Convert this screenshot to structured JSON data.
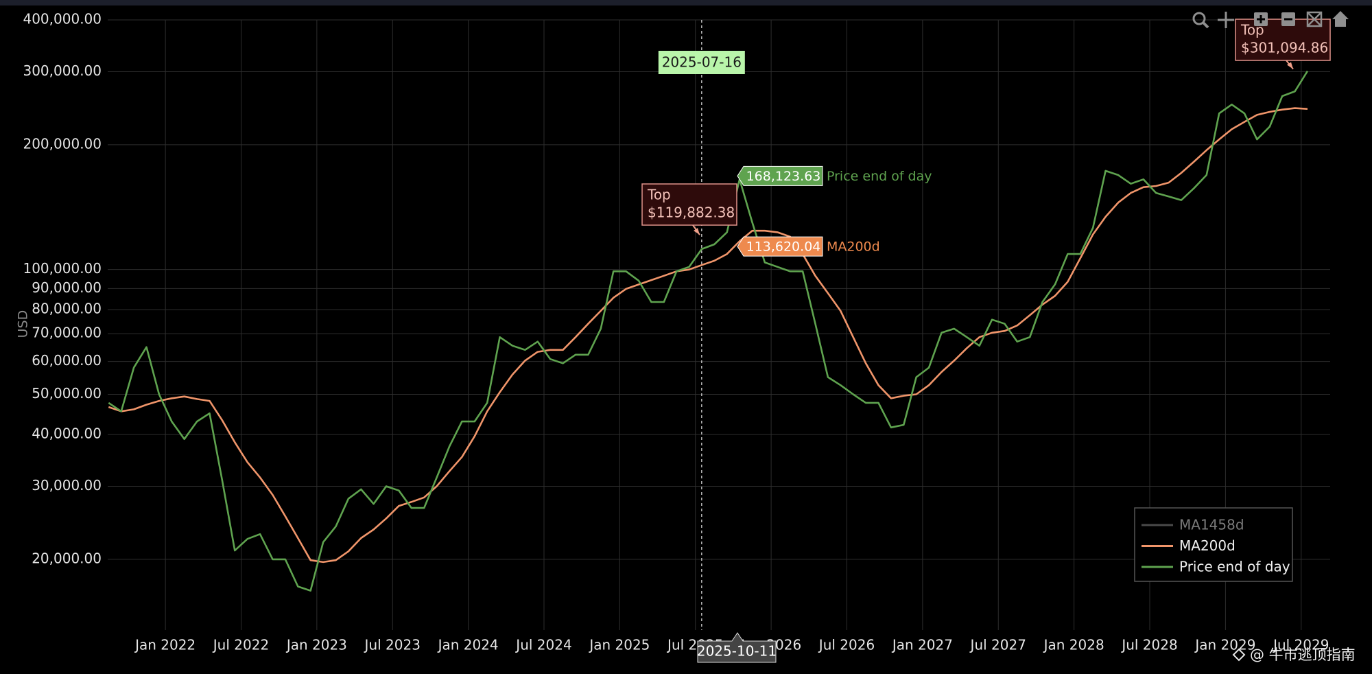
{
  "chart_data": {
    "type": "line",
    "y_label": "USD",
    "log_y": true,
    "grid": true,
    "legend": "bottom-right",
    "x": [
      "2021-08",
      "2021-09",
      "2021-10",
      "2021-11",
      "2021-12",
      "2022-01",
      "2022-02",
      "2022-03",
      "2022-04",
      "2022-05",
      "2022-06",
      "2022-07",
      "2022-08",
      "2022-09",
      "2022-10",
      "2022-11",
      "2022-12",
      "2023-01",
      "2023-02",
      "2023-03",
      "2023-04",
      "2023-05",
      "2023-06",
      "2023-07",
      "2023-08",
      "2023-09",
      "2023-10",
      "2023-11",
      "2023-12",
      "2024-01",
      "2024-02",
      "2024-03",
      "2024-04",
      "2024-05",
      "2024-06",
      "2024-07",
      "2024-08",
      "2024-09",
      "2024-10",
      "2024-11",
      "2024-12",
      "2025-01",
      "2025-02",
      "2025-03",
      "2025-04",
      "2025-05",
      "2025-06",
      "2025-07",
      "2025-08",
      "2025-09",
      "2025-10",
      "2025-11",
      "2025-12",
      "2026-01",
      "2026-02",
      "2026-03",
      "2026-04",
      "2026-05",
      "2026-06",
      "2026-07",
      "2026-08",
      "2026-09",
      "2026-10",
      "2026-11",
      "2026-12",
      "2027-01",
      "2027-02",
      "2027-03",
      "2027-04",
      "2027-05",
      "2027-06",
      "2027-07",
      "2027-08",
      "2027-09",
      "2027-10",
      "2027-11",
      "2027-12",
      "2028-01",
      "2028-02",
      "2028-03",
      "2028-04",
      "2028-05",
      "2028-06",
      "2028-07",
      "2028-08",
      "2028-09",
      "2028-10",
      "2028-11",
      "2028-12",
      "2029-01",
      "2029-02",
      "2029-03",
      "2029-04",
      "2029-05",
      "2029-06",
      "2029-07"
    ],
    "series": [
      {
        "name": "MA1458d",
        "color": "#4a4a4a"
      },
      {
        "name": "MA200d",
        "color": "#f0956a",
        "values": [
          46600,
          45500,
          46000,
          47200,
          48200,
          48900,
          49400,
          48700,
          48200,
          43300,
          38300,
          34300,
          31500,
          28600,
          25400,
          22500,
          19900,
          19700,
          19900,
          20900,
          22500,
          23600,
          25100,
          26900,
          27500,
          28200,
          30000,
          32600,
          35300,
          39600,
          45500,
          50600,
          55800,
          60300,
          63300,
          64000,
          64000,
          68700,
          74000,
          79500,
          85500,
          89800,
          92000,
          94300,
          96600,
          99000,
          100000,
          102500,
          105000,
          109000,
          117000,
          124000,
          124000,
          123000,
          120000,
          109000,
          96600,
          87700,
          79500,
          68700,
          59400,
          52600,
          48900,
          49600,
          50000,
          52600,
          56600,
          60300,
          64600,
          68700,
          70400,
          71100,
          73300,
          77600,
          82300,
          86400,
          93400,
          106500,
          121500,
          134000,
          145000,
          153000,
          158000,
          159000,
          162000,
          171000,
          182000,
          194000,
          206000,
          218000,
          227000,
          236000,
          240000,
          243000,
          245000,
          244000
        ]
      },
      {
        "name": "Price end of day",
        "color": "#5fa34f",
        "values": [
          47700,
          45500,
          58000,
          65000,
          50000,
          43000,
          39000,
          43000,
          45000,
          31000,
          21000,
          22400,
          23000,
          20000,
          20000,
          17200,
          16800,
          22000,
          24000,
          28000,
          29500,
          27200,
          30000,
          29300,
          26600,
          26600,
          31500,
          37400,
          43000,
          43000,
          47700,
          68700,
          65500,
          64000,
          67000,
          60800,
          59400,
          62300,
          62300,
          72000,
          99000,
          99000,
          94000,
          83500,
          83500,
          99000,
          101500,
          112000,
          115000,
          123000,
          165000,
          130000,
          104000,
          101500,
          99000,
          99000,
          74000,
          55000,
          52600,
          50000,
          47700,
          47700,
          41600,
          42200,
          55000,
          58000,
          70400,
          72000,
          68700,
          65500,
          75700,
          74000,
          67000,
          68700,
          83500,
          92100,
          109000,
          109000,
          126000,
          173000,
          169000,
          161000,
          165000,
          153000,
          150000,
          147000,
          157000,
          169000,
          238000,
          250000,
          238000,
          206000,
          221000,
          262000,
          269000,
          301000
        ]
      }
    ],
    "xlim": [
      "2021-08-14",
      "2029-09-10"
    ],
    "xticks": [
      {
        "value": "2022-01",
        "label": "Jan 2022"
      },
      {
        "value": "2022-07",
        "label": "Jul 2022"
      },
      {
        "value": "2023-01",
        "label": "Jan 2023"
      },
      {
        "value": "2023-07",
        "label": "Jul 2023"
      },
      {
        "value": "2024-01",
        "label": "Jan 2024"
      },
      {
        "value": "2024-07",
        "label": "Jul 2024"
      },
      {
        "value": "2025-01",
        "label": "Jan 2025"
      },
      {
        "value": "2025-07",
        "label": "Jul 2025"
      },
      {
        "value": "2026-01",
        "label": "Jan 2026"
      },
      {
        "value": "2026-07",
        "label": "Jul 2026"
      },
      {
        "value": "2027-01",
        "label": "Jan 2027"
      },
      {
        "value": "2027-07",
        "label": "Jul 2027"
      },
      {
        "value": "2028-01",
        "label": "Jan 2028"
      },
      {
        "value": "2028-07",
        "label": "Jul 2028"
      },
      {
        "value": "2029-01",
        "label": "Jan 2029"
      },
      {
        "value": "2029-07",
        "label": "Jul 2029"
      }
    ],
    "ylim": [
      13500,
      400000
    ],
    "yticks": [
      {
        "value": 20000,
        "label": "20,000.00"
      },
      {
        "value": 30000,
        "label": "30,000.00"
      },
      {
        "value": 40000,
        "label": "40,000.00"
      },
      {
        "value": 50000,
        "label": "50,000.00"
      },
      {
        "value": 60000,
        "label": "60,000.00"
      },
      {
        "value": 70000,
        "label": "70,000.00"
      },
      {
        "value": 80000,
        "label": "80,000.00"
      },
      {
        "value": 90000,
        "label": "90,000.00"
      },
      {
        "value": 100000,
        "label": "100,000.00"
      },
      {
        "value": 200000,
        "label": "200,000.00"
      },
      {
        "value": 300000,
        "label": "300,000.00"
      },
      {
        "value": 400000,
        "label": "400,000.00"
      }
    ],
    "spike_date": "2025-07-16",
    "hover_date": "2025-10-11",
    "hover_labels": [
      {
        "name": "Price end of day",
        "value": 168123.63,
        "label": "168,123.63",
        "color": "#5fa34f"
      },
      {
        "name": "MA200d",
        "value": 113620.04,
        "label": "113,620.04",
        "color": "#ee8a4e"
      }
    ],
    "annotations": [
      {
        "title": "Top",
        "value": 119882.38,
        "label": "$119,882.38"
      },
      {
        "title": "Top",
        "value": 301094.86,
        "label": "$301,094.86"
      }
    ]
  },
  "watermark": "@ 牛市逃顶指南"
}
